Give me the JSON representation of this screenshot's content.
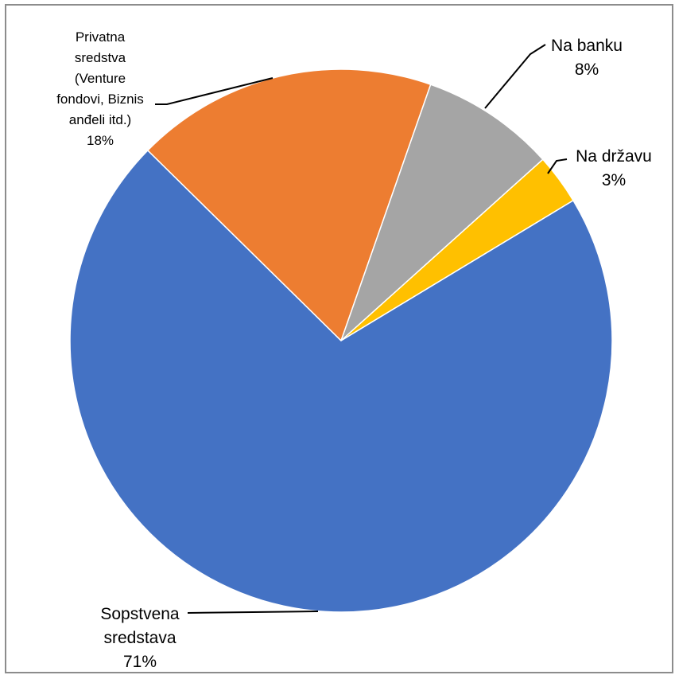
{
  "chart_data": {
    "type": "pie",
    "slices": [
      {
        "label_lines": [
          "Sopstvena",
          "sredstava"
        ],
        "percent_label": "71%",
        "value": 71,
        "color": "#4472C4"
      },
      {
        "label_lines": [
          "Privatna",
          "sredstva",
          "(Venture",
          "fondovi, Biznis",
          "anđeli itd.)"
        ],
        "percent_label": "18%",
        "value": 18,
        "color": "#ED7D31"
      },
      {
        "label_lines": [
          "Na banku"
        ],
        "percent_label": "8%",
        "value": 8,
        "color": "#A5A5A5"
      },
      {
        "label_lines": [
          "Na državu"
        ],
        "percent_label": "3%",
        "value": 3,
        "color": "#FFC000"
      }
    ]
  }
}
